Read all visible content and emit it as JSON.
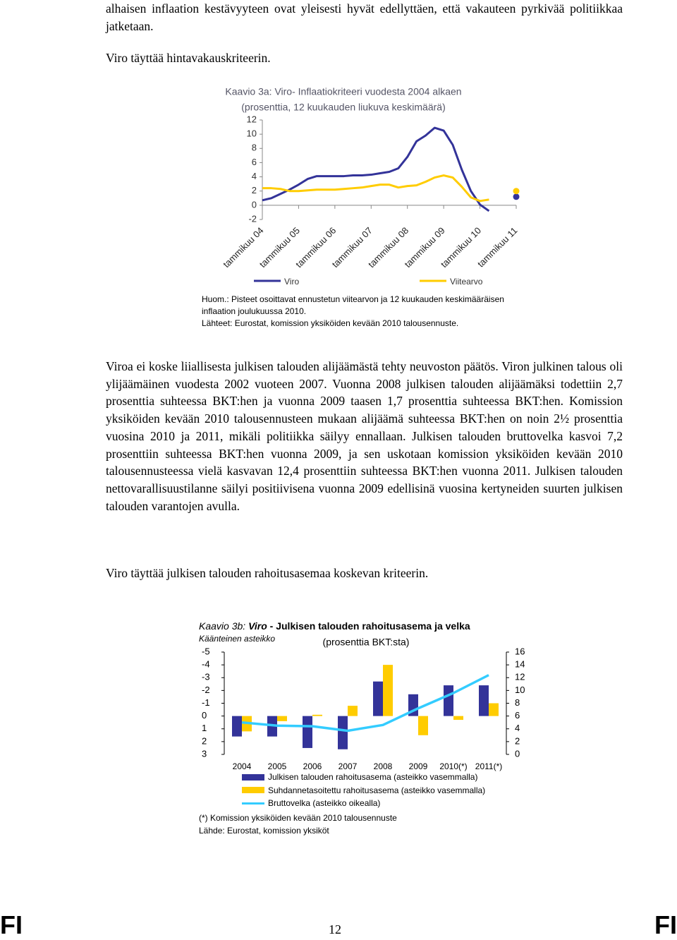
{
  "page": {
    "intro": "alhaisen inflaation kestävyyteen ovat yleisesti hyvät edellyttäen, että vakauteen pyrkivää politiikkaa jatketaan.",
    "criterion_1": "Viro täyttää hintavakauskriteerin.",
    "body": "Viroa ei koske liiallisesta julkisen talouden alijäämästä tehty neuvoston päätös. Viron julkinen talous oli ylijäämäinen vuodesta 2002 vuoteen 2007. Vuonna 2008 julkisen talouden alijäämäksi todettiin 2,7 prosenttia suhteessa BKT:hen ja vuonna 2009 taasen 1,7 prosenttia suhteessa BKT:hen. Komission yksiköiden kevään 2010 talousennusteen mukaan alijäämä suhteessa BKT:hen on noin 2½ prosenttia vuosina 2010 ja 2011, mikäli politiikka säilyy ennallaan. Julkisen talouden bruttovelka kasvoi 7,2 prosenttiin suhteessa BKT:hen vuonna 2009, ja sen uskotaan komission yksiköiden kevään 2010 talousennusteessa vielä kasvavan 12,4 prosenttiin suhteessa BKT:hen vuonna 2011. Julkisen talouden nettovarallisuustilanne säilyi positiivisena vuonna 2009 edellisinä vuosina kertyneiden suurten julkisen talouden varantojen avulla.",
    "criterion_2": "Viro täyttää julkisen talouden rahoitusasemaa koskevan kriteerin.",
    "footer_left": "FI",
    "page_number": 12,
    "footer_right": "FI"
  },
  "chart_data": [
    {
      "type": "line",
      "title": "Kaavio 3a: Viro- Inflaatiokriteeri vuodesta 2004 alkaen",
      "subtitle": "(prosenttia, 12 kuukauden liukuva keskimäärä)",
      "categories": [
        "tammikuu 04",
        null,
        null,
        null,
        "tammikuu 05",
        null,
        null,
        null,
        "tammikuu 06",
        null,
        null,
        null,
        "tammikuu 07",
        null,
        null,
        null,
        "tammikuu 08",
        null,
        null,
        null,
        "tammikuu 09",
        null,
        null,
        null,
        "tammikuu 10",
        null,
        null,
        null,
        "tammikuu 11"
      ],
      "series": [
        {
          "name": "Viro",
          "color": "#333399",
          "values": [
            0.7,
            1.0,
            1.6,
            2.2,
            2.9,
            3.7,
            4.1,
            4.1,
            4.1,
            4.1,
            4.2,
            4.2,
            4.3,
            4.5,
            4.7,
            5.2,
            6.8,
            9.0,
            9.8,
            10.9,
            10.5,
            8.5,
            5.0,
            2.0,
            0.1,
            -0.8,
            null,
            null,
            1.2
          ]
        },
        {
          "name": "Viitearvo",
          "color": "#ffcc00",
          "values": [
            2.4,
            2.4,
            2.3,
            2.0,
            2.0,
            2.1,
            2.2,
            2.2,
            2.2,
            2.3,
            2.4,
            2.5,
            2.7,
            2.9,
            2.9,
            2.5,
            2.7,
            2.8,
            3.3,
            3.9,
            4.2,
            3.9,
            2.6,
            1.1,
            0.6,
            0.8,
            null,
            null,
            2.0
          ]
        }
      ],
      "ylim": [
        -2,
        12
      ],
      "yticks": [
        -2,
        0,
        2,
        4,
        6,
        8,
        10,
        12
      ],
      "notes": [
        "Huom.: Pisteet osoittavat ennustetun viitearvon ja 12 kuukauden keskimääräisen inflaation joulukuussa 2010.",
        "Lähteet: Eurostat, komission yksiköiden kevään 2010 talousennuste."
      ]
    },
    {
      "type": "bar",
      "title": [
        "Kaavio 3b:",
        "Viro",
        "- Julkisen talouden rahoitusasema ja velka"
      ],
      "subtitle": "(prosenttia BKT:sta)",
      "y_label": "Käänteinen asteikko",
      "categories": [
        "2004",
        "2005",
        "2006",
        "2007",
        "2008",
        "2009",
        "2010(*)",
        "2011(*)"
      ],
      "series": [
        {
          "name": "Julkisen talouden rahoitusasema (asteikko vasemmalla)",
          "color": "#333399",
          "values": [
            1.6,
            1.6,
            2.5,
            2.6,
            -2.7,
            -1.7,
            -2.4,
            -2.4
          ]
        },
        {
          "name": "Suhdannetasoitettu rahoitusasema (asteikko vasemmalla)",
          "color": "#ffcc00",
          "values": [
            1.2,
            0.4,
            -0.1,
            -0.8,
            -4.0,
            1.5,
            0.3,
            -1.0
          ]
        },
        {
          "name": "Bruttovelka (asteikko oikealla)",
          "color": "#33ccff",
          "type": "line",
          "axis": "y2",
          "values": [
            5.0,
            4.5,
            4.4,
            3.7,
            4.6,
            7.2,
            9.6,
            12.4
          ]
        }
      ],
      "ylim": [
        -5,
        3
      ],
      "y_inverted": true,
      "yticks": [
        -5,
        -4,
        -3,
        -2,
        -1,
        0,
        1,
        2,
        3
      ],
      "y2lim": [
        0,
        16
      ],
      "y2ticks": [
        0,
        2,
        4,
        6,
        8,
        10,
        12,
        14,
        16
      ],
      "notes": [
        "(*) Komission yksiköiden kevään 2010 talousennuste",
        "Lähde: Eurostat, komission yksiköt"
      ]
    }
  ]
}
